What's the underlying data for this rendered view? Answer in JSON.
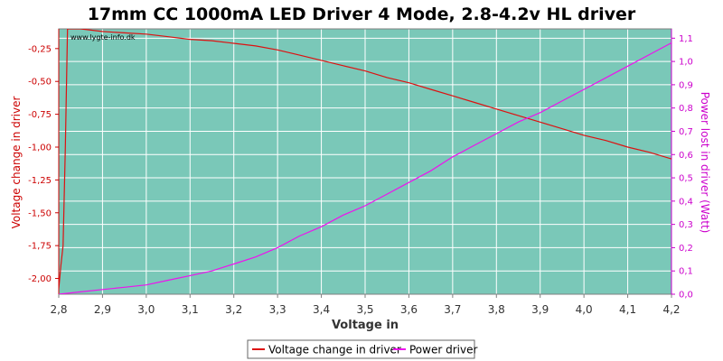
{
  "chart_data": {
    "type": "line",
    "title": "17mm CC 1000mA LED Driver 4 Mode, 2.8-4.2v HL driver",
    "watermark": "www.lygte-info.dk",
    "xlabel": "Voltage in",
    "ylabel_left": "Voltage change in driver",
    "ylabel_right": "Power lost in driver (Watt)",
    "xlim": [
      2.8,
      4.2
    ],
    "ylim_left": [
      -2.12,
      -0.1
    ],
    "ylim_right": [
      0.0,
      1.14
    ],
    "x_ticks": [
      "2,8",
      "2,9",
      "3,0",
      "3,1",
      "3,2",
      "3,3",
      "3,4",
      "3,5",
      "3,6",
      "3,7",
      "3,8",
      "3,9",
      "4,0",
      "4,1",
      "4,2"
    ],
    "x_tick_values": [
      2.8,
      2.9,
      3.0,
      3.1,
      3.2,
      3.3,
      3.4,
      3.5,
      3.6,
      3.7,
      3.8,
      3.9,
      4.0,
      4.1,
      4.2
    ],
    "y_left_ticks": [
      "-0,25",
      "-0,50",
      "-0,75",
      "-1,00",
      "-1,25",
      "-1,50",
      "-1,75",
      "-2,00"
    ],
    "y_left_tick_values": [
      -0.25,
      -0.5,
      -0.75,
      -1.0,
      -1.25,
      -1.5,
      -1.75,
      -2.0
    ],
    "y_right_ticks": [
      "0,0",
      "0,1",
      "0,2",
      "0,3",
      "0,4",
      "0,5",
      "0,6",
      "0,7",
      "0,8",
      "0,9",
      "1,0",
      "1,1"
    ],
    "y_right_tick_values": [
      0.0,
      0.1,
      0.2,
      0.3,
      0.4,
      0.5,
      0.6,
      0.7,
      0.8,
      0.9,
      1.0,
      1.1
    ],
    "grid": true,
    "legend_position": "bottom",
    "colors": {
      "plot_background": "#7ac8b8",
      "grid": "#ffffff",
      "axis": "#7f7f7f",
      "left_axis": "#cc0000",
      "right_axis": "#cc00cc"
    },
    "series": [
      {
        "name": "Voltage change in driver",
        "axis": "left",
        "color": "#dd1111",
        "x": [
          2.8,
          2.805,
          2.81,
          2.815,
          2.82,
          2.825,
          2.83,
          2.85,
          2.9,
          2.95,
          3.0,
          3.05,
          3.1,
          3.15,
          3.2,
          3.25,
          3.3,
          3.35,
          3.4,
          3.45,
          3.5,
          3.55,
          3.6,
          3.65,
          3.7,
          3.75,
          3.8,
          3.85,
          3.9,
          3.95,
          4.0,
          4.05,
          4.1,
          4.15,
          4.2
        ],
        "y": [
          -2.08,
          -1.9,
          -1.75,
          -1.0,
          -0.1,
          -0.1,
          -0.1,
          -0.1,
          -0.12,
          -0.13,
          -0.14,
          -0.16,
          -0.18,
          -0.19,
          -0.21,
          -0.23,
          -0.26,
          -0.3,
          -0.34,
          -0.38,
          -0.42,
          -0.47,
          -0.51,
          -0.56,
          -0.61,
          -0.66,
          -0.71,
          -0.76,
          -0.81,
          -0.86,
          -0.91,
          -0.95,
          -1.0,
          -1.04,
          -1.09
        ]
      },
      {
        "name": "Power driver",
        "axis": "right",
        "color": "#ee11ee",
        "x": [
          2.8,
          2.85,
          2.9,
          2.95,
          3.0,
          3.05,
          3.1,
          3.15,
          3.2,
          3.25,
          3.3,
          3.35,
          3.4,
          3.45,
          3.5,
          3.55,
          3.6,
          3.65,
          3.7,
          3.75,
          3.8,
          3.85,
          3.9,
          3.95,
          4.0,
          4.05,
          4.1,
          4.15,
          4.2
        ],
        "y": [
          0.0,
          0.01,
          0.02,
          0.03,
          0.04,
          0.06,
          0.08,
          0.1,
          0.13,
          0.16,
          0.2,
          0.25,
          0.29,
          0.34,
          0.38,
          0.43,
          0.48,
          0.53,
          0.59,
          0.64,
          0.69,
          0.74,
          0.78,
          0.83,
          0.88,
          0.93,
          0.98,
          1.03,
          1.08
        ]
      }
    ]
  }
}
